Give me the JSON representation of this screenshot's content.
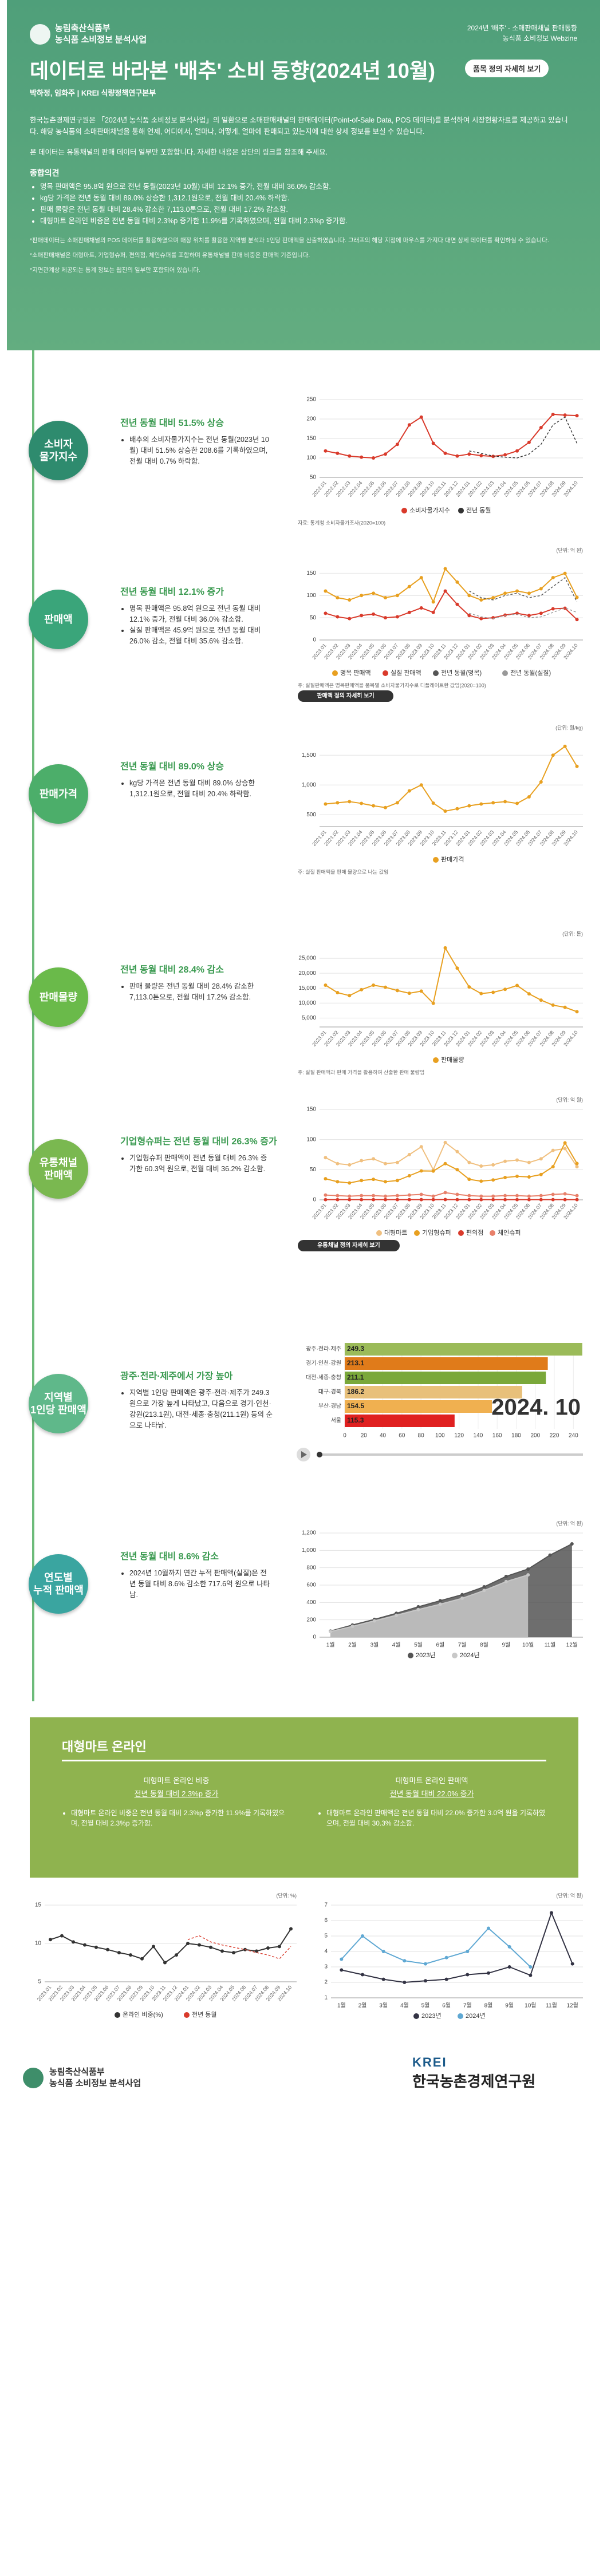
{
  "header": {
    "org": [
      "농림축산식품부",
      "농식품 소비정보 분석사업"
    ],
    "top_right": [
      "2024년 '배추' - 소매판매채널 판매동향",
      "농식품 소비정보 Webzine"
    ],
    "title": "데이터로 바라본 '배추' 소비 동향(2024년 10월)",
    "button": "품목 정의 자세히 보기",
    "authors": "박하정, 임화주 | KREI 식량정책연구본부",
    "intro": [
      "한국농촌경제연구원은 「2024년 농식품 소비정보 분석사업」의 일환으로 소매판매채널의 판매데이터(Point-of-Sale Data, POS 데이터)를 분석하여 시장현황자료를 제공하고 있습니다. 해당 농식품의 소매판매채널을 통해 언제, 어디에서, 얼마나, 어떻게, 얼마에 판매되고 있는지에 대한 상세 정보를 보실 수 있습니다.",
      "본 데이터는 유통채널의 판매 데이터 일부만 포함합니다. 자세한 내용은 상단의 링크를 참조해 주세요."
    ],
    "summary_title": "종합의견",
    "summary": [
      "명목 판매액은 95.8억 원으로 전년 동월(2023년 10월) 대비 12.1% 증가, 전월 대비 36.0% 감소함.",
      "kg당 가격은 전년 동월 대비 89.0% 상승한 1,312.1원으로, 전월 대비 20.4% 하락함.",
      "판매 물량은 전년 동월 대비 28.4% 감소한 7,113.0톤으로, 전월 대비 17.2% 감소함.",
      "대형마트 온라인 비중은 전년 동월 대비 2.3%p 증가한 11.9%를 기록하였으며, 전월 대비 2.3%p 증가함."
    ],
    "notes": [
      "*판매데이터는 소매판매채널의 POS 데이터를 활용하였으며 매장 위치를 활용한 지역별 분석과 1인당 판매액을 산출하였습니다. 그래프의 해당 지점에 마우스를 가져다 대면 상세 데이터를 확인하실 수 있습니다.",
      "*소매판매채널은 대형마트, 기업형슈퍼, 편의점, 체인슈퍼를 포함하며 유통채널별 판매 비중은 판매액 기준입니다.",
      "*지면관계상 제공되는 통계 정보는 웹진의 일부만 포함되어 있습니다."
    ]
  },
  "sections": [
    {
      "label": [
        "소비자",
        "물가지수"
      ],
      "headline": "전년 동월 대비 51.5% 상승",
      "bullets": [
        "배추의 소비자물가지수는 전년 동월(2023년 10월) 대비 51.5% 상승한 208.6를 기록하였으며, 전월 대비 0.7% 하락함."
      ]
    },
    {
      "label": [
        "판매액"
      ],
      "headline": "전년 동월 대비 12.1% 증가",
      "bullets": [
        "명목 판매액은 95.8억 원으로 전년 동월 대비 12.1% 증가, 전월 대비 36.0% 감소함.",
        "실질 판매액은 45.9억 원으로 전년 동월 대비 26.0% 감소, 전월 대비 35.6% 감소함."
      ]
    },
    {
      "label": [
        "판매가격"
      ],
      "headline": "전년 동월 대비 89.0% 상승",
      "bullets": [
        "kg당 가격은 전년 동월 대비 89.0% 상승한 1,312.1원으로, 전월 대비 20.4% 하락함."
      ]
    },
    {
      "label": [
        "판매물량"
      ],
      "headline": "전년 동월 대비 28.4% 감소",
      "bullets": [
        "판매 물량은 전년 동월 대비 28.4% 감소한 7,113.0톤으로, 전월 대비 17.2% 감소함."
      ]
    },
    {
      "label": [
        "유통채널",
        "판매액"
      ],
      "headline": "기업형슈퍼는 전년 동월 대비 26.3% 증가",
      "bullets": [
        "기업형슈퍼 판매액이 전년 동월 대비 26.3% 증가한 60.3억 원으로, 전월 대비 36.2% 감소함."
      ]
    },
    {
      "label": [
        "지역별",
        "1인당 판매액"
      ],
      "headline": "광주·전라·제주에서 가장 높아",
      "bullets": [
        "지역별 1인당 판매액은 광주·전라·제주가 249.3원으로 가장 높게 나타났고, 다음으로 경기·인천·강원(213.1원), 대전·세종·충청(211.1원) 등의 순으로 나타남."
      ]
    },
    {
      "label": [
        "연도별",
        "누적 판매액"
      ],
      "headline": "전년 동월 대비 8.6% 감소",
      "bullets": [
        "2024년 10월까지 연간 누적 판매액(실질)은 전년 동월 대비 8.6% 감소한 717.6억 원으로 나타남."
      ]
    }
  ],
  "online": {
    "title": "대형마트 온라인",
    "columns": [
      {
        "title": "대형마트 온라인 비중",
        "headline": "전년 동월 대비 2.3%p 증가",
        "bullets": [
          "대형마트 온라인 비중은 전년 동월 대비 2.3%p 증가한 11.9%를 기록하였으며, 전월 대비 2.3%p 증가함."
        ]
      },
      {
        "title": "대형마트 온라인 판매액",
        "headline": "전년 동월 대비 22.0% 증가",
        "bullets": [
          "대형마트 온라인 판매액은 전년 동월 대비 22.0% 증가한 3.0억 원을 기록하였으며, 전월 대비 30.3% 감소함."
        ]
      }
    ]
  },
  "footer": {
    "left": [
      "농림축산식품부",
      "농식품 소비정보 분석사업"
    ],
    "right": [
      "KREI",
      "한국농촌경제연구원"
    ]
  },
  "chart_data": [
    {
      "type": "line",
      "note": "자료: 통계청 소비자물가조사(2020=100)",
      "categories": [
        "2023.01",
        "2023.02",
        "2023.03",
        "2023.04",
        "2023.05",
        "2023.06",
        "2023.07",
        "2023.08",
        "2023.09",
        "2023.10",
        "2023.11",
        "2023.12",
        "2024.01",
        "2024.02",
        "2024.03",
        "2024.04",
        "2024.05",
        "2024.06",
        "2024.07",
        "2024.08",
        "2024.09",
        "2024.10"
      ],
      "ylim": [
        50,
        250
      ],
      "yticks": [
        50,
        100,
        150,
        200,
        250
      ],
      "grid": true,
      "series": [
        {
          "name": "소비자물가지수",
          "color": "#d93a2b",
          "values": [
            118,
            112,
            105,
            102,
            100,
            110,
            135,
            185,
            205,
            137.7,
            112,
            105,
            110,
            106,
            104,
            108,
            118,
            140,
            178,
            212,
            210.1,
            208.6
          ]
        },
        {
          "name": "전년 동월",
          "color": "#333333",
          "dash": true,
          "values": [
            null,
            null,
            null,
            null,
            null,
            null,
            null,
            null,
            null,
            null,
            null,
            null,
            118,
            112,
            105,
            102,
            100,
            110,
            135,
            185,
            205,
            137.7
          ]
        }
      ]
    },
    {
      "type": "line",
      "unit": "(단위: 억 원)",
      "note": "주: 실질판매액은 명목판매액을 품목별 소비자물가지수로 디플레이트한 값임(2020=100)",
      "button": "판매액 정의 자세히 보기",
      "categories": [
        "2023.01",
        "2023.02",
        "2023.03",
        "2023.04",
        "2023.05",
        "2023.06",
        "2023.07",
        "2023.08",
        "2023.09",
        "2023.10",
        "2023.11",
        "2023.12",
        "2024.01",
        "2024.02",
        "2024.03",
        "2024.04",
        "2024.05",
        "2024.06",
        "2024.07",
        "2024.08",
        "2024.09",
        "2024.10"
      ],
      "ylim": [
        0,
        180
      ],
      "yticks": [
        0,
        50,
        100,
        150
      ],
      "grid": true,
      "series": [
        {
          "name": "명목 판매액",
          "color": "#e8a020",
          "values": [
            110,
            95,
            90,
            100,
            105,
            95,
            100,
            120,
            140,
            85.5,
            160,
            130,
            100,
            90,
            95,
            105,
            110,
            105,
            115,
            140,
            149.7,
            95.8
          ]
        },
        {
          "name": "실질 판매액",
          "color": "#d93a2b",
          "values": [
            60,
            52,
            48,
            55,
            58,
            50,
            52,
            62,
            72,
            62.0,
            110,
            80,
            55,
            48,
            50,
            56,
            60,
            55,
            60,
            70,
            71.3,
            45.9
          ]
        },
        {
          "name": "전년 동월(명목)",
          "color": "#555555",
          "dash": true,
          "values": [
            null,
            null,
            null,
            null,
            null,
            null,
            null,
            null,
            null,
            null,
            null,
            null,
            110,
            95,
            90,
            100,
            105,
            95,
            100,
            120,
            140,
            85.5
          ]
        },
        {
          "name": "전년 동월(실질)",
          "color": "#999999",
          "dash": true,
          "values": [
            null,
            null,
            null,
            null,
            null,
            null,
            null,
            null,
            null,
            null,
            null,
            null,
            60,
            52,
            48,
            55,
            58,
            50,
            52,
            62,
            72,
            62.0
          ]
        }
      ]
    },
    {
      "type": "line",
      "unit": "(단위: 원/kg)",
      "note": "주: 실질 판매액을 판매 물량으로 나눈 값임",
      "categories": [
        "2023.01",
        "2023.02",
        "2023.03",
        "2023.04",
        "2023.05",
        "2023.06",
        "2023.07",
        "2023.08",
        "2023.09",
        "2023.10",
        "2023.11",
        "2023.12",
        "2024.01",
        "2024.02",
        "2024.03",
        "2024.04",
        "2024.05",
        "2024.06",
        "2024.07",
        "2024.08",
        "2024.09",
        "2024.10"
      ],
      "ylim": [
        300,
        1800
      ],
      "yticks": [
        500,
        {
          "value": 1000,
          "label": "1,000"
        },
        {
          "value": 1500,
          "label": "1,500"
        }
      ],
      "grid": true,
      "series": [
        {
          "name": "판매가격",
          "color": "#e8a020",
          "values": [
            680,
            700,
            720,
            690,
            650,
            620,
            700,
            900,
            1000,
            694.2,
            560,
            600,
            650,
            680,
            700,
            720,
            690,
            800,
            1050,
            1500,
            1648.2,
            1312.1
          ]
        }
      ]
    },
    {
      "type": "line",
      "unit": "(단위: 톤)",
      "note": "주: 실질 판매액과 판매 가격을 활용하여 산출한 판매 물량임",
      "categories": [
        "2023.01",
        "2023.02",
        "2023.03",
        "2023.04",
        "2023.05",
        "2023.06",
        "2023.07",
        "2023.08",
        "2023.09",
        "2023.10",
        "2023.11",
        "2023.12",
        "2024.01",
        "2024.02",
        "2024.03",
        "2024.04",
        "2024.05",
        "2024.06",
        "2024.07",
        "2024.08",
        "2024.09",
        "2024.10"
      ],
      "ylim": [
        2000,
        30000
      ],
      "yticks": [
        {
          "value": 5000,
          "label": "5,000"
        },
        {
          "value": 10000,
          "label": "10,000"
        },
        {
          "value": 15000,
          "label": "15,000"
        },
        {
          "value": 20000,
          "label": "20,000"
        },
        {
          "value": 25000,
          "label": "25,000"
        }
      ],
      "grid": true,
      "series": [
        {
          "name": "판매물량",
          "color": "#e8a020",
          "values": [
            16000,
            13500,
            12500,
            14500,
            16000,
            15300,
            14200,
            13300,
            14000,
            9934,
            28500,
            21700,
            15400,
            13200,
            13600,
            14600,
            15900,
            13100,
            11000,
            9300,
            8590,
            7113
          ]
        }
      ]
    },
    {
      "type": "line",
      "unit": "(단위: 억 원)",
      "button": "유통채널 정의 자세히 보기",
      "categories": [
        "2023.01",
        "2023.02",
        "2023.03",
        "2023.04",
        "2023.05",
        "2023.06",
        "2023.07",
        "2023.08",
        "2023.09",
        "2023.10",
        "2023.11",
        "2023.12",
        "2024.01",
        "2024.02",
        "2024.03",
        "2024.04",
        "2024.05",
        "2024.06",
        "2024.07",
        "2024.08",
        "2024.09",
        "2024.10"
      ],
      "ylim": [
        0,
        150
      ],
      "yticks": [
        0,
        50,
        100,
        150
      ],
      "grid": true,
      "series": [
        {
          "name": "대형마트",
          "color": "#f0c080",
          "values": [
            70,
            60,
            58,
            65,
            68,
            60,
            62,
            75,
            88,
            50,
            95,
            80,
            62,
            56,
            58,
            64,
            66,
            62,
            68,
            82,
            85,
            55
          ]
        },
        {
          "name": "기업형슈퍼",
          "color": "#e8a020",
          "values": [
            35,
            30,
            28,
            32,
            34,
            30,
            32,
            40,
            48,
            47.7,
            60,
            50,
            34,
            31,
            33,
            37,
            39,
            38,
            42,
            55,
            94.5,
            60.3
          ]
        },
        {
          "name": "편의점",
          "color": "#d93a2b",
          "values": [
            0.3,
            0.3,
            0.3,
            0.3,
            0.3,
            0.3,
            0.3,
            0.4,
            0.4,
            0.3,
            0.5,
            0.4,
            0.3,
            0.3,
            0.3,
            0.3,
            0.3,
            0.3,
            0.3,
            0.4,
            0.4,
            0.3
          ]
        },
        {
          "name": "체인슈퍼",
          "color": "#e8806a",
          "values": [
            8,
            7,
            6,
            7,
            7,
            6,
            7,
            8,
            9,
            6,
            12,
            9,
            7,
            6,
            6,
            7,
            7,
            6,
            7,
            9,
            10,
            7
          ]
        }
      ]
    },
    {
      "type": "barh",
      "period": "2024. 10",
      "categories": [
        "광주·전라·제주",
        "경기·인천·강원",
        "대전·세종·충청",
        "대구·경북",
        "부산·경남",
        "서울"
      ],
      "values": [
        249.3,
        213.1,
        211.1,
        186.2,
        154.5,
        115.3
      ],
      "colors": [
        "#9bbb59",
        "#e07b1a",
        "#7aa83a",
        "#e8c07a",
        "#f0b050",
        "#e02020"
      ],
      "xlim": [
        0,
        250
      ],
      "xticks": [
        0,
        20,
        40,
        60,
        80,
        100,
        120,
        140,
        160,
        180,
        200,
        220,
        240
      ],
      "grid": true
    },
    {
      "type": "line",
      "unit": "(단위: 억 원)",
      "categories": [
        "1월",
        "2월",
        "3월",
        "4월",
        "5월",
        "6월",
        "7월",
        "8월",
        "9월",
        "10월",
        "11월",
        "12월"
      ],
      "ylim": [
        0,
        1200
      ],
      "yticks": [
        0,
        200,
        400,
        600,
        800,
        {
          "value": 1000,
          "label": "1,000"
        },
        {
          "value": 1200,
          "label": "1,200"
        }
      ],
      "grid": true,
      "series": [
        {
          "name": "2023년",
          "color": "#555555",
          "area": true,
          "values": [
            70,
            140,
            205,
            275,
            350,
            420,
            490,
            580,
            700,
            785,
            945,
            1075
          ]
        },
        {
          "name": "2024년",
          "color": "#c8c8c8",
          "area": true,
          "values": [
            65,
            125,
            188,
            252,
            318,
            380,
            448,
            538,
            640,
            717.6,
            null,
            null
          ]
        }
      ]
    },
    {
      "type": "line",
      "unit": "(단위: %)",
      "categories": [
        "2023.01",
        "2023.02",
        "2023.03",
        "2023.04",
        "2023.05",
        "2023.06",
        "2023.07",
        "2023.08",
        "2023.09",
        "2023.10",
        "2023.11",
        "2023.12",
        "2024.01",
        "2024.02",
        "2024.03",
        "2024.04",
        "2024.05",
        "2024.06",
        "2024.07",
        "2024.08",
        "2024.09",
        "2024.10"
      ],
      "ylim": [
        5,
        15
      ],
      "yticks": [
        5,
        10,
        15
      ],
      "grid": true,
      "series": [
        {
          "name": "온라인 비중(%)",
          "color": "#333333",
          "values": [
            10.5,
            11.0,
            10.2,
            9.8,
            9.5,
            9.2,
            8.8,
            8.5,
            8.0,
            9.6,
            7.5,
            8.5,
            10.0,
            9.8,
            9.5,
            9.0,
            8.8,
            9.2,
            9.0,
            9.4,
            9.6,
            11.9
          ]
        },
        {
          "name": "전년 동월",
          "color": "#d93a2b",
          "dash": true,
          "values": [
            null,
            null,
            null,
            null,
            null,
            null,
            null,
            null,
            null,
            null,
            null,
            null,
            10.5,
            11.0,
            10.2,
            9.8,
            9.5,
            9.2,
            8.8,
            8.5,
            8.0,
            9.6
          ]
        }
      ]
    },
    {
      "type": "line",
      "unit": "(단위: 억 원)",
      "categories": [
        "1월",
        "2월",
        "3월",
        "4월",
        "5월",
        "6월",
        "7월",
        "8월",
        "9월",
        "10월",
        "11월",
        "12월"
      ],
      "ylim": [
        1,
        7
      ],
      "yticks": [
        1,
        2,
        3,
        4,
        5,
        6,
        7
      ],
      "grid": true,
      "series": [
        {
          "name": "2023년",
          "color": "#333344",
          "values": [
            2.8,
            2.5,
            2.2,
            2.0,
            2.1,
            2.2,
            2.5,
            2.6,
            3.0,
            2.46,
            6.5,
            3.2
          ]
        },
        {
          "name": "2024년",
          "color": "#5fa8d3",
          "values": [
            3.5,
            5.0,
            4.0,
            3.4,
            3.2,
            3.6,
            4.0,
            5.5,
            4.3,
            3.0,
            null,
            null
          ]
        }
      ]
    }
  ]
}
